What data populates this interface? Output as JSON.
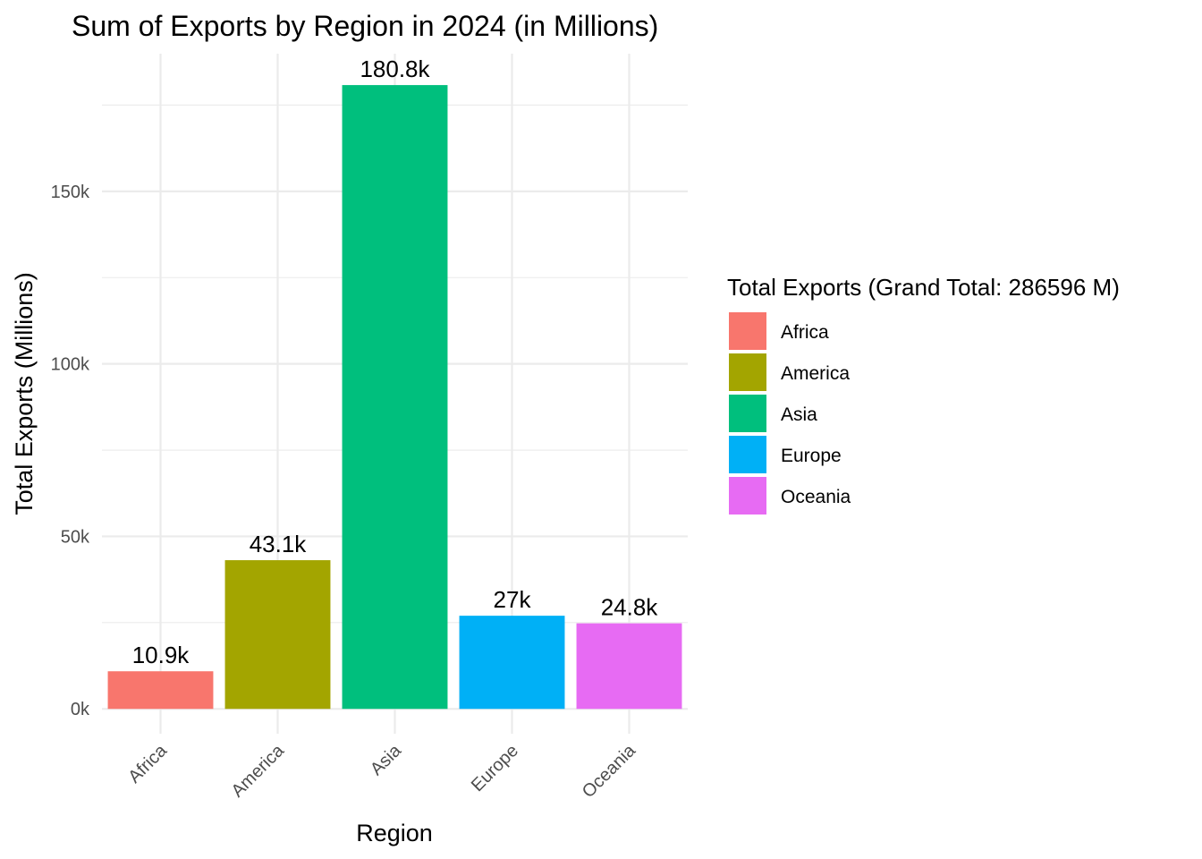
{
  "chart_data": {
    "type": "bar",
    "title": "Sum of Exports by Region in 2024 (in Millions)",
    "xlabel": "Region",
    "ylabel": "Total Exports (Millions)",
    "categories": [
      "Africa",
      "America",
      "Asia",
      "Europe",
      "Oceania"
    ],
    "values": [
      10900,
      43100,
      180800,
      27000,
      24800
    ],
    "data_labels": [
      "10.9k",
      "43.1k",
      "180.8k",
      "27k",
      "24.8k"
    ],
    "colors": [
      "#F8766D",
      "#A3A500",
      "#00BF7D",
      "#00B0F6",
      "#E76BF3"
    ],
    "y_ticks": [
      0,
      50000,
      100000,
      150000
    ],
    "y_tick_labels": [
      "0k",
      "50k",
      "100k",
      "150k"
    ],
    "ylim": [
      -7200,
      189900
    ],
    "grid": true,
    "legend": {
      "title": "Total Exports (Grand Total: 286596 M)",
      "position": "right",
      "entries": [
        "Africa",
        "America",
        "Asia",
        "Europe",
        "Oceania"
      ]
    }
  }
}
